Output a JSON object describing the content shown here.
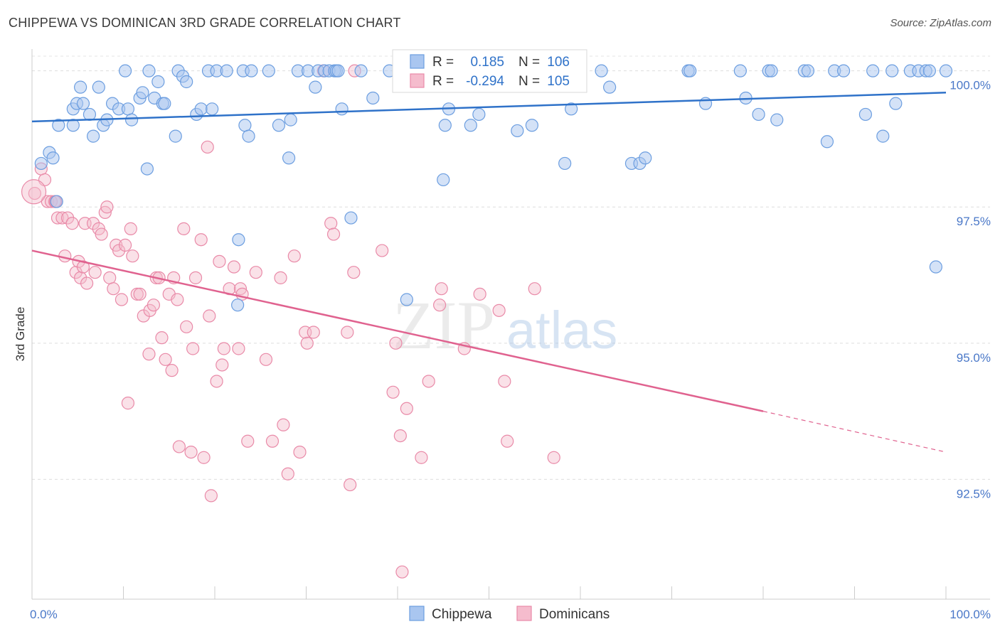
{
  "title": "CHIPPEWA VS DOMINICAN 3RD GRADE CORRELATION CHART",
  "source": "Source: ZipAtlas.com",
  "colors": {
    "blue": "#6c9ee0",
    "blue_fill": "#a9c6f0",
    "blue_line": "#2f72c9",
    "pink": "#e98aa8",
    "pink_fill": "#f5bccd",
    "pink_line": "#e0628f",
    "tick_text": "#4a78c8"
  },
  "legend_box": {
    "rows": [
      {
        "series": "Chippewa",
        "r_label": "R =",
        "r_value": "0.185",
        "n_label": "N =",
        "n_value": "106"
      },
      {
        "series": "Dominicans",
        "r_label": "R =",
        "r_value": "-0.294",
        "n_label": "N =",
        "n_value": "105"
      }
    ]
  },
  "bottom_legend": [
    "Chippewa",
    "Dominicans"
  ],
  "watermark": {
    "zip": "ZIP",
    "atlas": "atlas"
  },
  "chart_data": {
    "type": "scatter",
    "title": "CHIPPEWA VS DOMINICAN 3RD GRADE CORRELATION CHART",
    "xlabel": "",
    "ylabel": "3rd Grade",
    "xlim": [
      0,
      100
    ],
    "ylim": [
      90.3,
      100.4
    ],
    "x_tick_labels": [
      "0.0%",
      "100.0%"
    ],
    "y_ticks": [
      92.5,
      95.0,
      97.5,
      100.0
    ],
    "y_tick_labels": [
      "92.5%",
      "95.0%",
      "97.5%",
      "100.0%"
    ],
    "grid": true,
    "series": [
      {
        "name": "Chippewa",
        "r": 0.185,
        "n": 106,
        "trend": {
          "x": [
            0,
            100
          ],
          "y": [
            99.07,
            99.6
          ]
        },
        "points": [
          [
            1.0,
            98.3
          ],
          [
            1.9,
            98.5
          ],
          [
            2.3,
            98.4
          ],
          [
            2.7,
            97.6
          ],
          [
            2.9,
            99.0
          ],
          [
            4.5,
            99.3
          ],
          [
            4.5,
            99.0
          ],
          [
            4.9,
            99.4
          ],
          [
            5.3,
            99.7
          ],
          [
            5.6,
            99.4
          ],
          [
            6.3,
            99.2
          ],
          [
            6.7,
            98.8
          ],
          [
            7.3,
            99.7
          ],
          [
            7.8,
            99.0
          ],
          [
            8.2,
            99.1
          ],
          [
            8.8,
            99.4
          ],
          [
            9.5,
            99.3
          ],
          [
            10.2,
            100.0
          ],
          [
            10.5,
            99.3
          ],
          [
            10.9,
            99.1
          ],
          [
            11.8,
            99.5
          ],
          [
            12.1,
            99.6
          ],
          [
            12.6,
            98.2
          ],
          [
            12.8,
            100.0
          ],
          [
            13.4,
            99.5
          ],
          [
            13.8,
            99.8
          ],
          [
            14.3,
            99.4
          ],
          [
            14.5,
            99.4
          ],
          [
            15.7,
            98.8
          ],
          [
            16.0,
            100.0
          ],
          [
            16.5,
            99.9
          ],
          [
            16.9,
            99.8
          ],
          [
            18.0,
            99.2
          ],
          [
            18.5,
            99.3
          ],
          [
            19.3,
            100.0
          ],
          [
            19.7,
            99.3
          ],
          [
            20.2,
            100.0
          ],
          [
            21.3,
            100.0
          ],
          [
            22.6,
            96.9
          ],
          [
            23.1,
            100.0
          ],
          [
            23.3,
            99.0
          ],
          [
            23.7,
            98.8
          ],
          [
            22.5,
            95.7
          ],
          [
            24.0,
            100.0
          ],
          [
            25.9,
            100.0
          ],
          [
            27.0,
            99.0
          ],
          [
            28.1,
            98.4
          ],
          [
            28.3,
            99.1
          ],
          [
            29.1,
            100.0
          ],
          [
            30.2,
            100.0
          ],
          [
            31.0,
            99.7
          ],
          [
            31.3,
            100.0
          ],
          [
            32.0,
            100.0
          ],
          [
            32.5,
            100.0
          ],
          [
            33.1,
            100.0
          ],
          [
            33.3,
            100.0
          ],
          [
            33.5,
            100.0
          ],
          [
            33.9,
            99.3
          ],
          [
            34.9,
            97.3
          ],
          [
            36.0,
            100.0
          ],
          [
            37.3,
            99.5
          ],
          [
            39.1,
            100.0
          ],
          [
            41.0,
            95.8
          ],
          [
            42.8,
            100.0
          ],
          [
            45.0,
            98.0
          ],
          [
            45.2,
            99.0
          ],
          [
            45.6,
            99.3
          ],
          [
            46.9,
            100.0
          ],
          [
            48.0,
            99.0
          ],
          [
            48.9,
            99.2
          ],
          [
            50.2,
            100.0
          ],
          [
            51.8,
            100.0
          ],
          [
            53.1,
            98.9
          ],
          [
            54.7,
            99.0
          ],
          [
            55.3,
            100.0
          ],
          [
            58.3,
            98.3
          ],
          [
            59.0,
            99.3
          ],
          [
            62.3,
            100.0
          ],
          [
            63.2,
            99.7
          ],
          [
            65.6,
            98.3
          ],
          [
            66.5,
            98.3
          ],
          [
            67.1,
            98.4
          ],
          [
            71.8,
            100.0
          ],
          [
            72.0,
            100.0
          ],
          [
            73.7,
            99.4
          ],
          [
            77.5,
            100.0
          ],
          [
            78.1,
            99.5
          ],
          [
            79.5,
            99.2
          ],
          [
            80.6,
            100.0
          ],
          [
            80.9,
            100.0
          ],
          [
            81.5,
            99.1
          ],
          [
            84.5,
            100.0
          ],
          [
            84.9,
            100.0
          ],
          [
            87.0,
            98.7
          ],
          [
            87.8,
            100.0
          ],
          [
            88.8,
            100.0
          ],
          [
            91.2,
            99.2
          ],
          [
            92.0,
            100.0
          ],
          [
            93.1,
            98.8
          ],
          [
            94.1,
            100.0
          ],
          [
            94.5,
            99.4
          ],
          [
            96.1,
            100.0
          ],
          [
            97.0,
            100.0
          ],
          [
            97.8,
            100.0
          ],
          [
            98.2,
            100.0
          ],
          [
            98.9,
            96.4
          ],
          [
            100.0,
            100.0
          ]
        ]
      },
      {
        "name": "Dominicans",
        "r": -0.294,
        "n": 105,
        "trend": {
          "x": [
            0,
            80
          ],
          "y": [
            96.7,
            93.75
          ]
        },
        "trend_dashed": {
          "x": [
            80,
            100
          ],
          "y": [
            93.75,
            93.0
          ]
        },
        "points": [
          [
            0.3,
            97.75
          ],
          [
            1.0,
            98.2
          ],
          [
            1.4,
            98.0
          ],
          [
            1.7,
            97.6
          ],
          [
            2.1,
            97.6
          ],
          [
            2.5,
            97.6
          ],
          [
            2.6,
            97.6
          ],
          [
            2.8,
            97.3
          ],
          [
            3.3,
            97.3
          ],
          [
            3.6,
            96.6
          ],
          [
            3.9,
            97.3
          ],
          [
            4.4,
            97.2
          ],
          [
            4.8,
            96.3
          ],
          [
            5.1,
            96.5
          ],
          [
            5.3,
            96.2
          ],
          [
            5.6,
            96.4
          ],
          [
            5.8,
            97.2
          ],
          [
            6.0,
            96.1
          ],
          [
            6.7,
            97.2
          ],
          [
            6.9,
            96.3
          ],
          [
            7.3,
            97.1
          ],
          [
            7.6,
            97.0
          ],
          [
            8.0,
            97.4
          ],
          [
            8.2,
            97.5
          ],
          [
            8.5,
            96.2
          ],
          [
            8.9,
            96.0
          ],
          [
            9.2,
            96.8
          ],
          [
            9.5,
            96.7
          ],
          [
            9.8,
            95.8
          ],
          [
            10.2,
            96.8
          ],
          [
            10.5,
            93.9
          ],
          [
            10.8,
            97.1
          ],
          [
            11.0,
            96.6
          ],
          [
            11.5,
            95.9
          ],
          [
            11.8,
            95.9
          ],
          [
            12.2,
            95.5
          ],
          [
            12.8,
            94.8
          ],
          [
            12.9,
            95.6
          ],
          [
            13.3,
            95.7
          ],
          [
            13.6,
            96.2
          ],
          [
            13.9,
            96.2
          ],
          [
            14.2,
            95.1
          ],
          [
            14.6,
            94.7
          ],
          [
            15.0,
            95.9
          ],
          [
            15.3,
            94.5
          ],
          [
            15.5,
            96.2
          ],
          [
            15.9,
            95.8
          ],
          [
            16.1,
            93.1
          ],
          [
            16.6,
            97.1
          ],
          [
            16.9,
            95.3
          ],
          [
            17.4,
            93.0
          ],
          [
            17.6,
            94.9
          ],
          [
            17.9,
            96.2
          ],
          [
            18.5,
            96.9
          ],
          [
            18.8,
            92.9
          ],
          [
            19.2,
            98.6
          ],
          [
            19.4,
            95.5
          ],
          [
            19.6,
            92.2
          ],
          [
            20.2,
            94.3
          ],
          [
            20.5,
            96.5
          ],
          [
            20.8,
            94.6
          ],
          [
            21.0,
            94.9
          ],
          [
            21.6,
            96.0
          ],
          [
            22.1,
            96.4
          ],
          [
            22.6,
            94.9
          ],
          [
            22.8,
            96.0
          ],
          [
            23.0,
            95.9
          ],
          [
            23.6,
            93.2
          ],
          [
            24.5,
            96.3
          ],
          [
            25.6,
            94.7
          ],
          [
            26.3,
            93.2
          ],
          [
            27.2,
            96.2
          ],
          [
            27.5,
            93.5
          ],
          [
            28.0,
            92.6
          ],
          [
            28.7,
            96.6
          ],
          [
            29.3,
            93.0
          ],
          [
            29.9,
            95.2
          ],
          [
            30.1,
            95.0
          ],
          [
            30.8,
            95.2
          ],
          [
            32.7,
            97.2
          ],
          [
            33.0,
            97.0
          ],
          [
            34.5,
            95.2
          ],
          [
            34.8,
            92.4
          ],
          [
            35.2,
            96.3
          ],
          [
            38.3,
            96.7
          ],
          [
            39.5,
            94.1
          ],
          [
            39.8,
            95.0
          ],
          [
            40.3,
            93.3
          ],
          [
            40.5,
            90.8
          ],
          [
            41.0,
            93.8
          ],
          [
            42.6,
            92.9
          ],
          [
            43.4,
            94.3
          ],
          [
            44.6,
            95.7
          ],
          [
            44.8,
            96.0
          ],
          [
            47.3,
            94.9
          ],
          [
            49.0,
            95.9
          ],
          [
            51.1,
            95.6
          ],
          [
            51.7,
            94.3
          ],
          [
            52.0,
            93.2
          ],
          [
            57.1,
            92.9
          ],
          [
            55.0,
            96.0
          ],
          [
            31.9,
            100.0
          ],
          [
            35.3,
            100.0
          ],
          [
            45.3,
            100.0
          ],
          [
            54.0,
            100.0
          ]
        ]
      }
    ]
  }
}
